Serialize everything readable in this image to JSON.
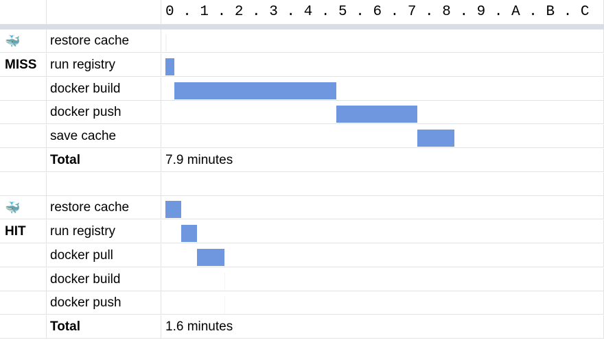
{
  "scale_label": "0 . 1 . 2 . 3 . 4 . 5 . 6 . 7 . 8 . 9 . A . B . C",
  "colors": {
    "bar": "#6f97e0",
    "grid": "#e2e2e2",
    "header_divider": "#d9dde6"
  },
  "chart_data": {
    "type": "bar",
    "orientation": "horizontal-gantt",
    "x_ticks": [
      "0",
      "1",
      "2",
      "3",
      "4",
      "5",
      "6",
      "7",
      "8",
      "9",
      "A",
      "B",
      "C"
    ],
    "xlim": [
      0,
      12
    ],
    "groups": [
      {
        "icon": "whale-icon",
        "label": "MISS",
        "tasks": [
          {
            "name": "restore cache",
            "start": 0.0,
            "end": 0.03
          },
          {
            "name": "run registry",
            "start": 0.0,
            "end": 0.25
          },
          {
            "name": "docker build",
            "start": 0.25,
            "end": 4.65
          },
          {
            "name": "docker push",
            "start": 4.65,
            "end": 6.85
          },
          {
            "name": "save cache",
            "start": 6.85,
            "end": 7.85
          }
        ],
        "total_label": "Total",
        "total": "7.9 minutes"
      },
      {
        "icon": "whale-icon",
        "label": "HIT",
        "tasks": [
          {
            "name": "restore cache",
            "start": 0.0,
            "end": 0.42
          },
          {
            "name": "run registry",
            "start": 0.42,
            "end": 0.85
          },
          {
            "name": "docker pull",
            "start": 0.85,
            "end": 1.6
          },
          {
            "name": "docker build",
            "start": 1.6,
            "end": 1.62
          },
          {
            "name": "docker push",
            "start": 1.6,
            "end": 1.62
          }
        ],
        "total_label": "Total",
        "total": "1.6 minutes"
      }
    ]
  }
}
